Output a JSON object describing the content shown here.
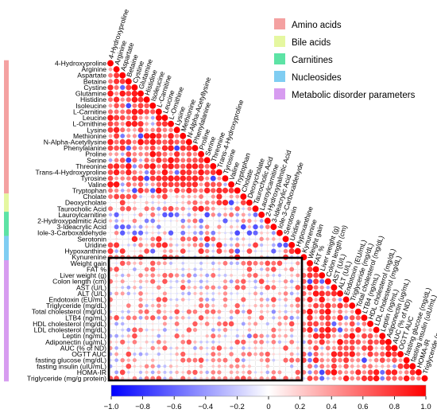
{
  "chart_data": {
    "type": "heatmap",
    "variables": [
      "4-Hydroxyproline",
      "Arginine",
      "Aspartate",
      "Betaine",
      "Cystine",
      "Glutamine",
      "Histidine",
      "Isoleucine",
      "L-Carnitine",
      "Leucine",
      "L-Ornithine",
      "Lysine",
      "Methionine",
      "N-Alpha-Acetyllysine",
      "Phenylalanine",
      "Proline",
      "Serine",
      "Threonine",
      "Trans-4-Hydroxyproline",
      "Tyrosine",
      "Valine",
      "Tryptophan",
      "Cholate",
      "Deoxycholate",
      "Taurocholic Acid",
      "Lauroylcarnitine",
      "2-Hydroxypalmitic Acid",
      "3-Ideacrylic Acid",
      "Iole-3-Carboxaldehyde",
      "Serotonin",
      "Uridine",
      "Hypoxanthine",
      "Kynurenine",
      "Weight gain",
      "FAT %",
      "Liver weight (g)",
      "Colon length (cm)",
      "AST (U/L)",
      "ALT (U/L)",
      "Endotoxin (EU/mL)",
      "Triglyceride (mg/dL)",
      "Total cholesterol (mg/dL)",
      "LTB4 (ng/mL)",
      "HDL cholesterol (mg/dL)",
      "LDL cholesterol (mg/dL)",
      "Leptin (ng/mL)",
      "Adiponectin (ug/mL)",
      "AUC (% of ND)",
      "OGTT AUC",
      "fasting glucose (mg/dL)",
      "fasting insulin (uIU/mL)",
      "HOMA-IR",
      "Triglyceride (mg/g protein)"
    ],
    "groups": [
      {
        "name": "Amino acids",
        "color": "#f4a1a1",
        "start": 0,
        "end": 21
      },
      {
        "name": "Bile acids",
        "color": "#e5f7a0",
        "start": 22,
        "end": 24
      },
      {
        "name": "Carnitines",
        "color": "#5de3a5",
        "start": 25,
        "end": 28
      },
      {
        "name": "Nucleosides",
        "color": "#7fcdf2",
        "start": 29,
        "end": 32
      },
      {
        "name": "Metabolic disorder parameters",
        "color": "#d79cf0",
        "start": 33,
        "end": 52
      }
    ],
    "seed": 7,
    "colorscale": {
      "min": -1.0,
      "max": 1.0,
      "low": "#0000ff",
      "mid": "#ffffff",
      "high": "#ff0000"
    },
    "colorbar_ticks": [
      "−1.0",
      "−0.8",
      "−0.6",
      "−0.4",
      "−0.2",
      "0",
      "0.2",
      "0.4",
      "0.6",
      "0.8",
      "1.0"
    ]
  }
}
